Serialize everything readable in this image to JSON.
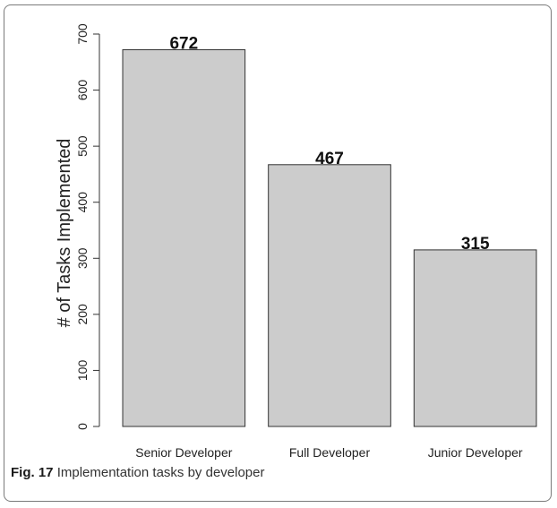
{
  "caption": {
    "label": "Fig. 17",
    "text": "Implementation tasks by developer"
  },
  "chart_data": {
    "type": "bar",
    "title": "",
    "xlabel": "",
    "ylabel": "# of Tasks Implemented",
    "categories": [
      "Senior Developer",
      "Full Developer",
      "Junior Developer"
    ],
    "values": [
      672,
      467,
      315
    ],
    "data_labels": [
      "672",
      "467",
      "315"
    ],
    "ylim": [
      0,
      700
    ],
    "yticks": [
      0,
      100,
      200,
      300,
      400,
      500,
      600,
      700
    ],
    "bar_color": "#cccccc",
    "bar_edge_color": "#333333",
    "grid": false,
    "legend": "none"
  }
}
